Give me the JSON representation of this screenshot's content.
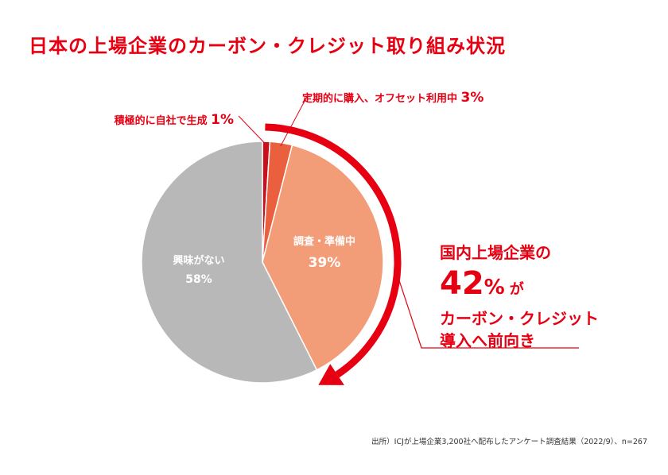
{
  "title": "日本の上場企業のカーボン・クレジット取り組み状況",
  "chart_data": {
    "type": "pie",
    "title": "日本の上場企業のカーボン・クレジット取り組み状況",
    "slices": [
      {
        "label": "積極的に自社で生成",
        "value": 1,
        "value_label": "1%",
        "color": "#c8101e"
      },
      {
        "label": "定期的に購入、オフセット利用中",
        "value": 3,
        "value_label": "3%",
        "color": "#ea5f3e"
      },
      {
        "label": "調査・準備中",
        "value": 39,
        "value_label": "39%",
        "color": "#f29c78"
      },
      {
        "label": "興味がない",
        "value": 58,
        "value_label": "58%",
        "color": "#b8b8b8"
      }
    ],
    "accent_color": "#e60012"
  },
  "callout": {
    "line1": "国内上場企業の",
    "number": "42",
    "percent": "%",
    "suffix": "が",
    "line3": "カーボン・クレジット",
    "line4": "導入へ前向き"
  },
  "source": "出所）ICJが上場企業3,200社へ配布したアンケート調査結果（2022/9）、n=267"
}
